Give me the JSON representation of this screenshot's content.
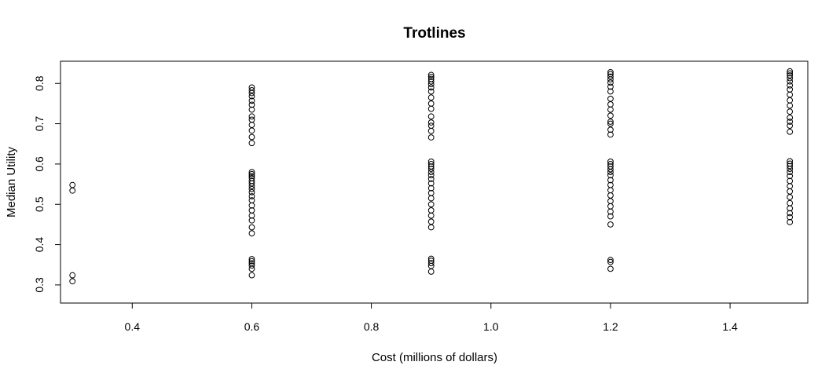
{
  "chart_data": {
    "type": "scatter",
    "title": "Trotlines",
    "xlabel": "Cost (millions of dollars)",
    "ylabel": "Median Utility",
    "xlim": [
      0.28,
      1.53
    ],
    "ylim": [
      0.255,
      0.855
    ],
    "xticks": [
      "0.4",
      "0.6",
      "0.8",
      "1.0",
      "1.2",
      "1.4"
    ],
    "yticks": [
      "0.3",
      "0.4",
      "0.5",
      "0.6",
      "0.7",
      "0.8"
    ],
    "grid": false,
    "legend": "none",
    "marker": "open-circle",
    "series": [
      {
        "points": [
          {
            "x": 0.3,
            "y": 0.548
          },
          {
            "x": 0.3,
            "y": 0.534
          },
          {
            "x": 0.3,
            "y": 0.324
          },
          {
            "x": 0.3,
            "y": 0.309
          },
          {
            "x": 0.6,
            "y": 0.79
          },
          {
            "x": 0.6,
            "y": 0.783
          },
          {
            "x": 0.6,
            "y": 0.776
          },
          {
            "x": 0.6,
            "y": 0.768
          },
          {
            "x": 0.6,
            "y": 0.757
          },
          {
            "x": 0.6,
            "y": 0.747
          },
          {
            "x": 0.6,
            "y": 0.735
          },
          {
            "x": 0.6,
            "y": 0.718
          },
          {
            "x": 0.6,
            "y": 0.71
          },
          {
            "x": 0.6,
            "y": 0.697
          },
          {
            "x": 0.6,
            "y": 0.683
          },
          {
            "x": 0.6,
            "y": 0.667
          },
          {
            "x": 0.6,
            "y": 0.652
          },
          {
            "x": 0.6,
            "y": 0.58
          },
          {
            "x": 0.6,
            "y": 0.575
          },
          {
            "x": 0.6,
            "y": 0.57
          },
          {
            "x": 0.6,
            "y": 0.565
          },
          {
            "x": 0.6,
            "y": 0.558
          },
          {
            "x": 0.6,
            "y": 0.552
          },
          {
            "x": 0.6,
            "y": 0.545
          },
          {
            "x": 0.6,
            "y": 0.538
          },
          {
            "x": 0.6,
            "y": 0.53
          },
          {
            "x": 0.6,
            "y": 0.52
          },
          {
            "x": 0.6,
            "y": 0.51
          },
          {
            "x": 0.6,
            "y": 0.497
          },
          {
            "x": 0.6,
            "y": 0.485
          },
          {
            "x": 0.6,
            "y": 0.472
          },
          {
            "x": 0.6,
            "y": 0.46
          },
          {
            "x": 0.6,
            "y": 0.443
          },
          {
            "x": 0.6,
            "y": 0.428
          },
          {
            "x": 0.6,
            "y": 0.364
          },
          {
            "x": 0.6,
            "y": 0.359
          },
          {
            "x": 0.6,
            "y": 0.354
          },
          {
            "x": 0.6,
            "y": 0.348
          },
          {
            "x": 0.6,
            "y": 0.34
          },
          {
            "x": 0.6,
            "y": 0.324
          },
          {
            "x": 0.9,
            "y": 0.821
          },
          {
            "x": 0.9,
            "y": 0.816
          },
          {
            "x": 0.9,
            "y": 0.811
          },
          {
            "x": 0.9,
            "y": 0.805
          },
          {
            "x": 0.9,
            "y": 0.798
          },
          {
            "x": 0.9,
            "y": 0.79
          },
          {
            "x": 0.9,
            "y": 0.78
          },
          {
            "x": 0.9,
            "y": 0.765
          },
          {
            "x": 0.9,
            "y": 0.75
          },
          {
            "x": 0.9,
            "y": 0.737
          },
          {
            "x": 0.9,
            "y": 0.718
          },
          {
            "x": 0.9,
            "y": 0.703
          },
          {
            "x": 0.9,
            "y": 0.695
          },
          {
            "x": 0.9,
            "y": 0.682
          },
          {
            "x": 0.9,
            "y": 0.666
          },
          {
            "x": 0.9,
            "y": 0.606
          },
          {
            "x": 0.9,
            "y": 0.6
          },
          {
            "x": 0.9,
            "y": 0.594
          },
          {
            "x": 0.9,
            "y": 0.588
          },
          {
            "x": 0.9,
            "y": 0.58
          },
          {
            "x": 0.9,
            "y": 0.572
          },
          {
            "x": 0.9,
            "y": 0.563
          },
          {
            "x": 0.9,
            "y": 0.552
          },
          {
            "x": 0.9,
            "y": 0.54
          },
          {
            "x": 0.9,
            "y": 0.528
          },
          {
            "x": 0.9,
            "y": 0.515
          },
          {
            "x": 0.9,
            "y": 0.5
          },
          {
            "x": 0.9,
            "y": 0.485
          },
          {
            "x": 0.9,
            "y": 0.472
          },
          {
            "x": 0.9,
            "y": 0.457
          },
          {
            "x": 0.9,
            "y": 0.443
          },
          {
            "x": 0.9,
            "y": 0.365
          },
          {
            "x": 0.9,
            "y": 0.36
          },
          {
            "x": 0.9,
            "y": 0.354
          },
          {
            "x": 0.9,
            "y": 0.347
          },
          {
            "x": 0.9,
            "y": 0.333
          },
          {
            "x": 1.2,
            "y": 0.828
          },
          {
            "x": 1.2,
            "y": 0.823
          },
          {
            "x": 1.2,
            "y": 0.817
          },
          {
            "x": 1.2,
            "y": 0.81
          },
          {
            "x": 1.2,
            "y": 0.802
          },
          {
            "x": 1.2,
            "y": 0.792
          },
          {
            "x": 1.2,
            "y": 0.78
          },
          {
            "x": 1.2,
            "y": 0.762
          },
          {
            "x": 1.2,
            "y": 0.748
          },
          {
            "x": 1.2,
            "y": 0.735
          },
          {
            "x": 1.2,
            "y": 0.72
          },
          {
            "x": 1.2,
            "y": 0.705
          },
          {
            "x": 1.2,
            "y": 0.7
          },
          {
            "x": 1.2,
            "y": 0.685
          },
          {
            "x": 1.2,
            "y": 0.673
          },
          {
            "x": 1.2,
            "y": 0.606
          },
          {
            "x": 1.2,
            "y": 0.6
          },
          {
            "x": 1.2,
            "y": 0.594
          },
          {
            "x": 1.2,
            "y": 0.587
          },
          {
            "x": 1.2,
            "y": 0.58
          },
          {
            "x": 1.2,
            "y": 0.572
          },
          {
            "x": 1.2,
            "y": 0.56
          },
          {
            "x": 1.2,
            "y": 0.548
          },
          {
            "x": 1.2,
            "y": 0.535
          },
          {
            "x": 1.2,
            "y": 0.522
          },
          {
            "x": 1.2,
            "y": 0.508
          },
          {
            "x": 1.2,
            "y": 0.495
          },
          {
            "x": 1.2,
            "y": 0.482
          },
          {
            "x": 1.2,
            "y": 0.47
          },
          {
            "x": 1.2,
            "y": 0.45
          },
          {
            "x": 1.2,
            "y": 0.362
          },
          {
            "x": 1.2,
            "y": 0.357
          },
          {
            "x": 1.2,
            "y": 0.34
          },
          {
            "x": 1.5,
            "y": 0.83
          },
          {
            "x": 1.5,
            "y": 0.825
          },
          {
            "x": 1.5,
            "y": 0.82
          },
          {
            "x": 1.5,
            "y": 0.813
          },
          {
            "x": 1.5,
            "y": 0.805
          },
          {
            "x": 1.5,
            "y": 0.795
          },
          {
            "x": 1.5,
            "y": 0.785
          },
          {
            "x": 1.5,
            "y": 0.772
          },
          {
            "x": 1.5,
            "y": 0.758
          },
          {
            "x": 1.5,
            "y": 0.745
          },
          {
            "x": 1.5,
            "y": 0.73
          },
          {
            "x": 1.5,
            "y": 0.715
          },
          {
            "x": 1.5,
            "y": 0.705
          },
          {
            "x": 1.5,
            "y": 0.695
          },
          {
            "x": 1.5,
            "y": 0.68
          },
          {
            "x": 1.5,
            "y": 0.607
          },
          {
            "x": 1.5,
            "y": 0.601
          },
          {
            "x": 1.5,
            "y": 0.595
          },
          {
            "x": 1.5,
            "y": 0.588
          },
          {
            "x": 1.5,
            "y": 0.58
          },
          {
            "x": 1.5,
            "y": 0.57
          },
          {
            "x": 1.5,
            "y": 0.558
          },
          {
            "x": 1.5,
            "y": 0.545
          },
          {
            "x": 1.5,
            "y": 0.532
          },
          {
            "x": 1.5,
            "y": 0.518
          },
          {
            "x": 1.5,
            "y": 0.503
          },
          {
            "x": 1.5,
            "y": 0.49
          },
          {
            "x": 1.5,
            "y": 0.478
          },
          {
            "x": 1.5,
            "y": 0.468
          },
          {
            "x": 1.5,
            "y": 0.456
          }
        ]
      }
    ]
  }
}
